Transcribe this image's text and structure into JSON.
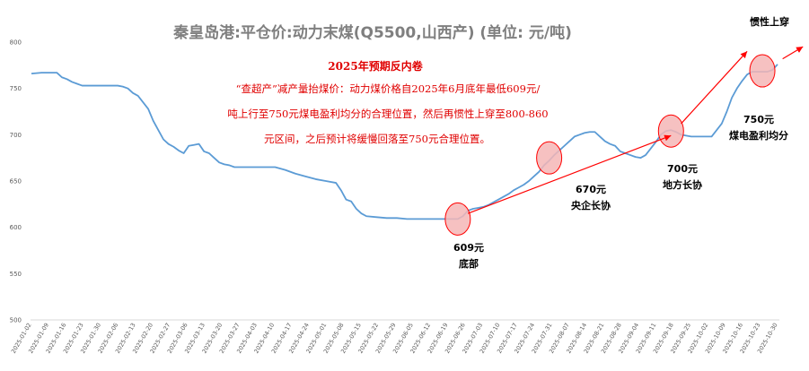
{
  "chart_data": {
    "type": "line",
    "title": "秦皇岛港:平仓价:动力末煤(Q5500,山西产)   (单位:   元/吨)",
    "xlabel": "",
    "ylabel": "",
    "ylim": [
      500,
      800
    ],
    "yticks": [
      "500",
      "550",
      "600",
      "650",
      "700",
      "750",
      "800"
    ],
    "grid": false,
    "legend": "none",
    "line_color": "#5b9bd5",
    "x_tick_labels": [
      "2025-01-02",
      "2025-01-09",
      "2025-01-16",
      "2025-01-23",
      "2025-01-30",
      "2025-02-06",
      "2025-02-13",
      "2025-02-20",
      "2025-02-27",
      "2025-03-06",
      "2025-03-13",
      "2025-03-20",
      "2025-03-27",
      "2025-04-03",
      "2025-04-10",
      "2025-04-17",
      "2025-04-24",
      "2025-05-01",
      "2025-05-08",
      "2025-05-15",
      "2025-05-22",
      "2025-05-29",
      "2025-06-05",
      "2025-06-12",
      "2025-06-19",
      "2025-06-26",
      "2025-07-03",
      "2025-07-10",
      "2025-07-17",
      "2025-07-24",
      "2025-07-31",
      "2025-08-07",
      "2025-08-14",
      "2025-08-21",
      "2025-08-28",
      "2025-09-04",
      "2025-09-11",
      "2025-09-18",
      "2025-09-25",
      "2025-10-02",
      "2025-10-09",
      "2025-10-16",
      "2025-10-23",
      "2025-10-30"
    ],
    "series": [
      {
        "values": [
          [
            0,
            766
          ],
          [
            2,
            767
          ],
          [
            4,
            767
          ],
          [
            5,
            767
          ],
          [
            6,
            762
          ],
          [
            7,
            760
          ],
          [
            8,
            757
          ],
          [
            9,
            755
          ],
          [
            10,
            753
          ],
          [
            11,
            753
          ],
          [
            12,
            753
          ],
          [
            13,
            753
          ],
          [
            14,
            753
          ],
          [
            15,
            753
          ],
          [
            16,
            753
          ],
          [
            17,
            753
          ],
          [
            18,
            752
          ],
          [
            19,
            750
          ],
          [
            20,
            745
          ],
          [
            21,
            742
          ],
          [
            22,
            735
          ],
          [
            23,
            728
          ],
          [
            24,
            715
          ],
          [
            25,
            705
          ],
          [
            26,
            695
          ],
          [
            27,
            690
          ],
          [
            28,
            687
          ],
          [
            29,
            683
          ],
          [
            30,
            680
          ],
          [
            31,
            688
          ],
          [
            32,
            689
          ],
          [
            33,
            690
          ],
          [
            34,
            682
          ],
          [
            35,
            680
          ],
          [
            36,
            675
          ],
          [
            37,
            670
          ],
          [
            38,
            668
          ],
          [
            39,
            667
          ],
          [
            40,
            665
          ],
          [
            42,
            665
          ],
          [
            45,
            665
          ],
          [
            48,
            665
          ],
          [
            50,
            662
          ],
          [
            52,
            658
          ],
          [
            54,
            655
          ],
          [
            56,
            652
          ],
          [
            58,
            650
          ],
          [
            60,
            648
          ],
          [
            61,
            640
          ],
          [
            62,
            630
          ],
          [
            63,
            628
          ],
          [
            64,
            620
          ],
          [
            65,
            615
          ],
          [
            66,
            612
          ],
          [
            68,
            611
          ],
          [
            70,
            610
          ],
          [
            72,
            610
          ],
          [
            74,
            609
          ],
          [
            76,
            609
          ],
          [
            78,
            609
          ],
          [
            80,
            609
          ],
          [
            82,
            609
          ],
          [
            84,
            609
          ],
          [
            85,
            612
          ],
          [
            86,
            618
          ],
          [
            87,
            620
          ],
          [
            88,
            621
          ],
          [
            89,
            622
          ],
          [
            90,
            624
          ],
          [
            91,
            627
          ],
          [
            92,
            630
          ],
          [
            93,
            633
          ],
          [
            94,
            636
          ],
          [
            95,
            640
          ],
          [
            96,
            643
          ],
          [
            97,
            646
          ],
          [
            98,
            650
          ],
          [
            99,
            655
          ],
          [
            100,
            660
          ],
          [
            101,
            667
          ],
          [
            102,
            672
          ],
          [
            103,
            678
          ],
          [
            104,
            683
          ],
          [
            105,
            688
          ],
          [
            106,
            693
          ],
          [
            107,
            698
          ],
          [
            108,
            700
          ],
          [
            109,
            702
          ],
          [
            110,
            703
          ],
          [
            111,
            703
          ],
          [
            112,
            698
          ],
          [
            113,
            693
          ],
          [
            114,
            690
          ],
          [
            115,
            688
          ],
          [
            116,
            682
          ],
          [
            117,
            680
          ],
          [
            118,
            678
          ],
          [
            119,
            676
          ],
          [
            120,
            675
          ],
          [
            121,
            678
          ],
          [
            122,
            685
          ],
          [
            123,
            692
          ],
          [
            124,
            700
          ],
          [
            125,
            704
          ],
          [
            126,
            705
          ],
          [
            127,
            703
          ],
          [
            128,
            700
          ],
          [
            129,
            699
          ],
          [
            130,
            698
          ],
          [
            131,
            698
          ],
          [
            132,
            698
          ],
          [
            133,
            698
          ],
          [
            134,
            698
          ],
          [
            135,
            705
          ],
          [
            136,
            712
          ],
          [
            137,
            725
          ],
          [
            138,
            740
          ],
          [
            139,
            750
          ],
          [
            140,
            758
          ],
          [
            141,
            765
          ],
          [
            142,
            768
          ],
          [
            143,
            768
          ],
          [
            144,
            768
          ],
          [
            145,
            768
          ],
          [
            146,
            770
          ],
          [
            147,
            776
          ]
        ]
      }
    ],
    "annotations": {
      "note_title": "2025年预期反内卷",
      "note_lines": [
        "“查超产”减产量抬煤价：动力煤价格自2025年6月底年最低609元/",
        "吨上行至750元煤电盈利均分的合理位置，然后再惯性上穿至800-860",
        "元区间，之后预计将缓慢回落至750元合理位置。"
      ],
      "labels": [
        {
          "lines": [
            "609元",
            "底部"
          ],
          "x": 84,
          "y": 609
        },
        {
          "lines": [
            "670元",
            "央企长协"
          ],
          "x": 102,
          "y": 675
        },
        {
          "lines": [
            "700元",
            "地方长协"
          ],
          "x": 126,
          "y": 704
        },
        {
          "lines": [
            "750元",
            "煤电盈利均分"
          ],
          "x": 144,
          "y": 769
        },
        {
          "lines": [
            "惯性上穿"
          ],
          "x": 147,
          "y": 776
        }
      ],
      "circle_color": "#ff0000",
      "circle_fill": "#f4b6b6",
      "arrow_color": "#ff0000"
    }
  }
}
